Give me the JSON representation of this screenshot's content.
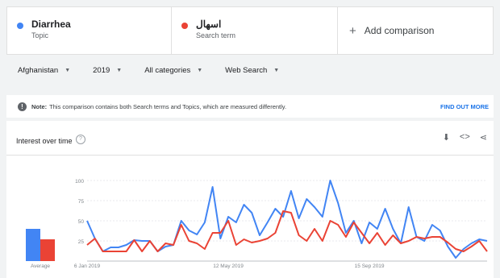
{
  "terms": [
    {
      "name": "Diarrhea",
      "sub": "Topic",
      "color": "#4285f4"
    },
    {
      "name": "اسهال",
      "sub": "Search term",
      "color": "#ea4335"
    }
  ],
  "add_comparison_label": "Add comparison",
  "filters": {
    "region": "Afghanistan",
    "year": "2019",
    "category": "All categories",
    "search_type": "Web Search"
  },
  "note": {
    "bold": "Note:",
    "text": "This comparison contains both Search terms and Topics, which are measured differently.",
    "link": "FIND OUT MORE"
  },
  "panel": {
    "title": "Interest over time",
    "average_label": "Average"
  },
  "chart_data": {
    "type": "line",
    "y_ticks": [
      100,
      75,
      50,
      25
    ],
    "ylim": [
      0,
      100
    ],
    "x_labels": [
      {
        "label": "6 Jan 2019",
        "index": 0
      },
      {
        "label": "12 May 2019",
        "index": 18
      },
      {
        "label": "15 Sep 2019",
        "index": 36
      }
    ],
    "averages": [
      40,
      27
    ],
    "series": [
      {
        "color": "#4285f4",
        "values": [
          50,
          28,
          12,
          17,
          17,
          20,
          26,
          25,
          25,
          12,
          18,
          20,
          50,
          38,
          33,
          48,
          92,
          28,
          55,
          48,
          70,
          60,
          32,
          48,
          65,
          55,
          87,
          53,
          77,
          67,
          55,
          100,
          72,
          35,
          50,
          22,
          48,
          40,
          65,
          40,
          22,
          67,
          30,
          25,
          45,
          38,
          18,
          4,
          15,
          22,
          27,
          25
        ]
      },
      {
        "color": "#ea4335",
        "values": [
          20,
          28,
          12,
          12,
          12,
          12,
          26,
          12,
          25,
          12,
          22,
          20,
          45,
          25,
          22,
          15,
          35,
          35,
          50,
          20,
          27,
          23,
          25,
          28,
          35,
          62,
          60,
          32,
          25,
          40,
          25,
          50,
          45,
          30,
          48,
          35,
          22,
          35,
          20,
          32,
          22,
          25,
          30,
          28,
          30,
          30,
          23,
          15,
          12,
          18,
          25,
          12
        ]
      }
    ]
  }
}
